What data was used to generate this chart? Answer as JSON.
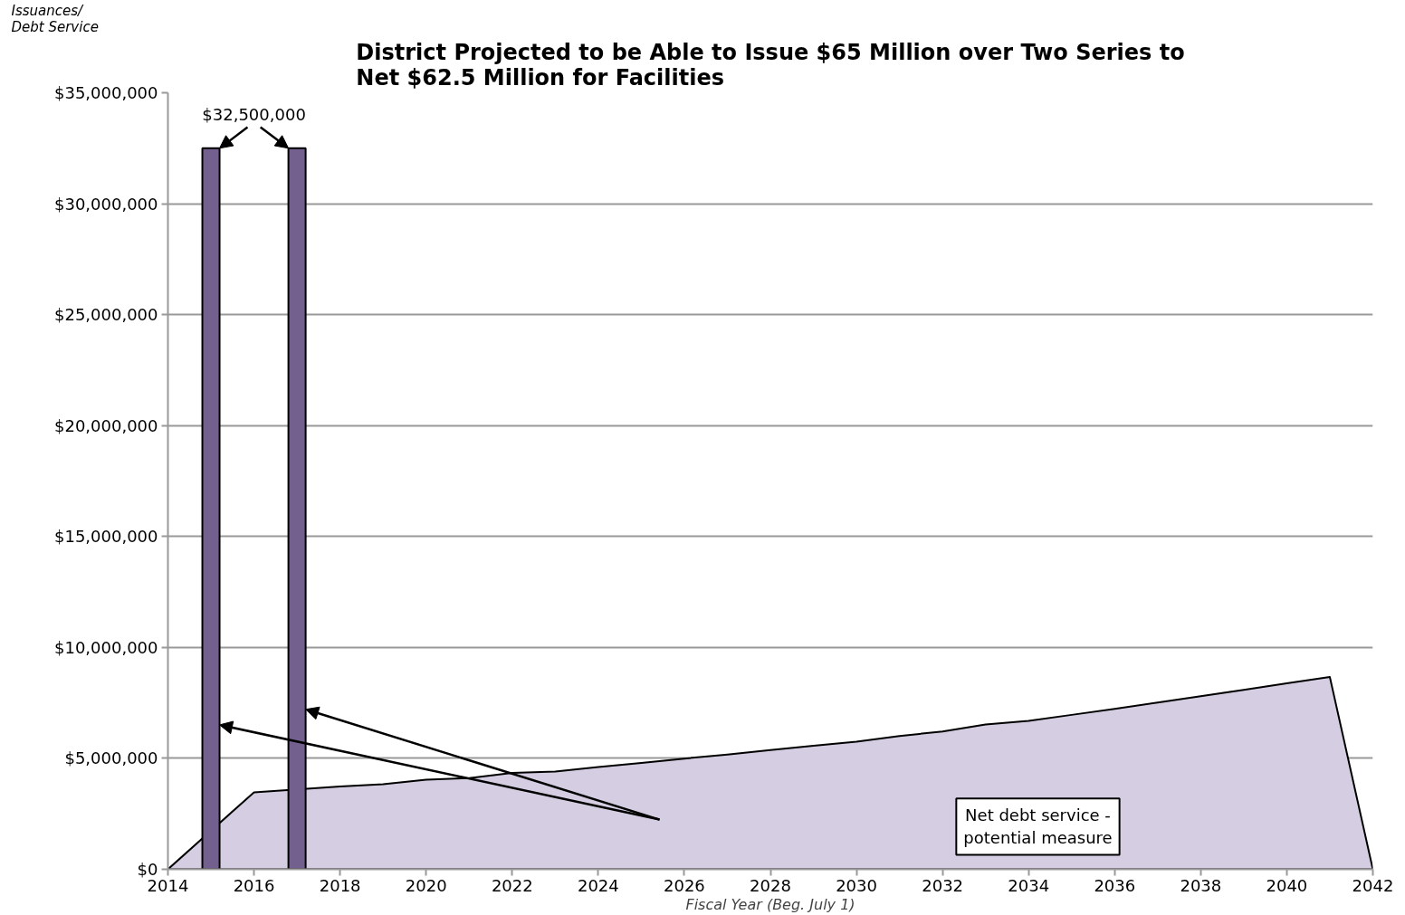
{
  "chart_data": {
    "type": "area",
    "title": "District Projected to be Able to Issue $65 Million over Two Series to Net $62.5 Million for Facilities",
    "ylabel": "Issuances/ Debt Service",
    "xlabel": "Fiscal Year (Beg. July 1)",
    "annotations": [
      {
        "text": "$32,500,000",
        "x": 2015,
        "y": 32500000
      },
      "Net debt service - potential measure"
    ],
    "series": [
      {
        "color": "#d5cde2",
        "x": [
          2014,
          2015,
          2016,
          2017,
          2018,
          2019,
          2020,
          2021,
          2022,
          2023,
          2024,
          2025,
          2026,
          2027,
          2028,
          2029,
          2030,
          2031,
          2032,
          2033,
          2034,
          2035,
          2036,
          2037,
          2038,
          2039,
          2040,
          2041,
          2042
        ],
        "values": [
          0,
          null,
          3470000,
          null,
          3730000,
          3830000,
          4040000,
          4110000,
          4340000,
          4410000,
          4610000,
          4790000,
          4990000,
          5170000,
          5370000,
          5570000,
          5750000,
          6010000,
          6210000,
          6530000,
          6690000,
          6960000,
          7230000,
          7520000,
          7800000,
          8090000,
          8380000,
          8670000,
          0
        ]
      },
      {
        "type": "bar",
        "color": "#74608e",
        "x": [
          2015,
          2017
        ],
        "values": [
          32500000,
          32500000
        ]
      }
    ],
    "xlim": [
      2014,
      2042
    ],
    "ylim": [
      0,
      35000000
    ],
    "xticks": [
      2014,
      2016,
      2018,
      2020,
      2022,
      2024,
      2026,
      2028,
      2030,
      2032,
      2034,
      2036,
      2038,
      2040,
      2042
    ],
    "yticks": [
      {
        "value": 0,
        "label": "$0"
      },
      {
        "value": 5000000,
        "label": "$5,000,000"
      },
      {
        "value": 10000000,
        "label": "$10,000,000"
      },
      {
        "value": 15000000,
        "label": "$15,000,000"
      },
      {
        "value": 20000000,
        "label": "$20,000,000"
      },
      {
        "value": 25000000,
        "label": "$25,000,000"
      },
      {
        "value": 30000000,
        "label": "$30,000,000"
      },
      {
        "value": 35000000,
        "label": "$35,000,000"
      }
    ],
    "grid": "y"
  }
}
